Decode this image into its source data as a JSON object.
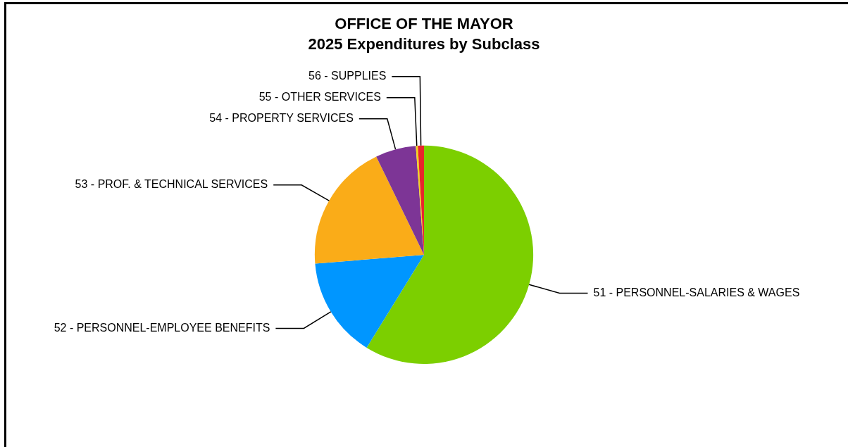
{
  "chart_data": {
    "type": "pie",
    "title": "OFFICE OF THE MAYOR",
    "subtitle": "2025 Expenditures by Subclass",
    "categories": [
      "51 - PERSONNEL-SALARIES & WAGES",
      "52 - PERSONNEL-EMPLOYEE BENEFITS",
      "53 - PROF. & TECHNICAL SERVICES",
      "54 - PROPERTY SERVICES",
      "55 - OTHER SERVICES",
      "56 - SUPPLIES"
    ],
    "values": [
      58.8,
      14.9,
      19.1,
      6.0,
      0.3,
      0.9
    ],
    "colors": [
      "#7ccf00",
      "#0096ff",
      "#faac18",
      "#7d3596",
      "#f2d31b",
      "#e8262b"
    ],
    "legend": false
  }
}
